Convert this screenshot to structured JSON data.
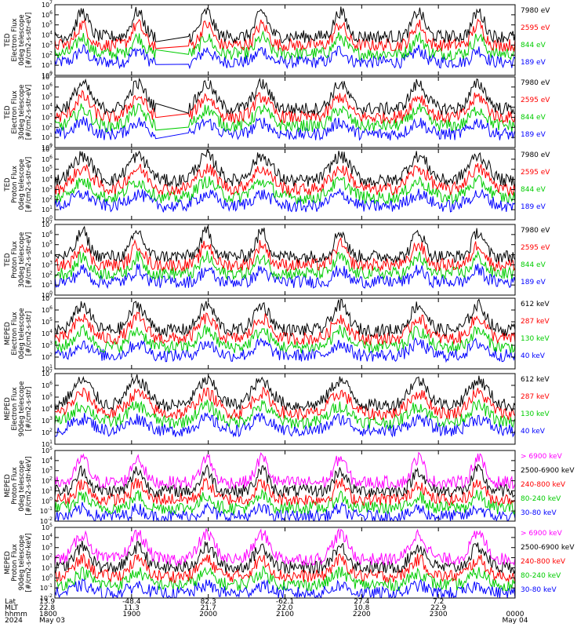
{
  "chart_data": {
    "type": "line",
    "x_range": [
      "1800",
      "0000"
    ],
    "x_ticks": [
      "1800",
      "1900",
      "2000",
      "2100",
      "2200",
      "2300",
      "0000"
    ],
    "y_scale": "log",
    "panels": [
      {
        "ylabel": [
          "TED",
          "Electron Flux",
          "0deg telescope",
          "[#/cm2-s-str-eV]"
        ],
        "ylim_exp": [
          0,
          7
        ],
        "legend": [
          {
            "name": "7980 eV",
            "color": "#000000"
          },
          {
            "name": "2595 eV",
            "color": "#ff0000"
          },
          {
            "name": "844 eV",
            "color": "#00cc00"
          },
          {
            "name": "189 eV",
            "color": "#0000ff"
          }
        ]
      },
      {
        "ylabel": [
          "TED",
          "Electron Flux",
          "30deg telescope",
          "[#/cm2-s-str-eV]"
        ],
        "ylim_exp": [
          0,
          7
        ],
        "legend": [
          {
            "name": "7980 eV",
            "color": "#000000"
          },
          {
            "name": "2595 eV",
            "color": "#ff0000"
          },
          {
            "name": "844 eV",
            "color": "#00cc00"
          },
          {
            "name": "189 eV",
            "color": "#0000ff"
          }
        ]
      },
      {
        "ylabel": [
          "TED",
          "Proton Flux",
          "0deg telescope",
          "[#/cm2-s-str-eV]"
        ],
        "ylim_exp": [
          0,
          7
        ],
        "legend": [
          {
            "name": "7980 eV",
            "color": "#000000"
          },
          {
            "name": "2595 eV",
            "color": "#ff0000"
          },
          {
            "name": "844 eV",
            "color": "#00cc00"
          },
          {
            "name": "189 eV",
            "color": "#0000ff"
          }
        ]
      },
      {
        "ylabel": [
          "TED",
          "Proton Flux",
          "30deg telescope",
          "[#/cm2-s-str-eV]"
        ],
        "ylim_exp": [
          0,
          7
        ],
        "legend": [
          {
            "name": "7980 eV",
            "color": "#000000"
          },
          {
            "name": "2595 eV",
            "color": "#ff0000"
          },
          {
            "name": "844 eV",
            "color": "#00cc00"
          },
          {
            "name": "189 eV",
            "color": "#0000ff"
          }
        ]
      },
      {
        "ylabel": [
          "MEPED",
          "Electron Flux",
          "0deg telescope",
          "[#/cm2-s-str]"
        ],
        "ylim_exp": [
          1,
          7
        ],
        "legend": [
          {
            "name": "612 keV",
            "color": "#000000"
          },
          {
            "name": "287 keV",
            "color": "#ff0000"
          },
          {
            "name": "130 keV",
            "color": "#00cc00"
          },
          {
            "name": "40 keV",
            "color": "#0000ff"
          }
        ]
      },
      {
        "ylabel": [
          "MEPED",
          "Electron Flux",
          "90deg telescope",
          "[#/cm2-s-str]"
        ],
        "ylim_exp": [
          1,
          7
        ],
        "legend": [
          {
            "name": "612 keV",
            "color": "#000000"
          },
          {
            "name": "287 keV",
            "color": "#ff0000"
          },
          {
            "name": "130 keV",
            "color": "#00cc00"
          },
          {
            "name": "40 keV",
            "color": "#0000ff"
          }
        ]
      },
      {
        "ylabel": [
          "MEPED",
          "Proton Flux",
          "0deg telescope",
          "[#/cm2-s-str-keV]"
        ],
        "ylim_exp": [
          -2,
          5
        ],
        "legend": [
          {
            "name": "> 6900 keV",
            "color": "#ff00ff"
          },
          {
            "name": "2500-6900 keV",
            "color": "#000000"
          },
          {
            "name": "240-800 keV",
            "color": "#ff0000"
          },
          {
            "name": "80-240 keV",
            "color": "#00cc00"
          },
          {
            "name": "30-80 keV",
            "color": "#0000ff"
          }
        ]
      },
      {
        "ylabel": [
          "MEPED",
          "Proton Flux",
          "90deg telescope",
          "[#/cm2-s-str-keV]"
        ],
        "ylim_exp": [
          -2,
          5
        ],
        "legend": [
          {
            "name": "> 6900 keV",
            "color": "#ff00ff"
          },
          {
            "name": "2500-6900 keV",
            "color": "#000000"
          },
          {
            "name": "240-800 keV",
            "color": "#ff0000"
          },
          {
            "name": "80-240 keV",
            "color": "#00cc00"
          },
          {
            "name": "30-80 keV",
            "color": "#0000ff"
          }
        ]
      }
    ],
    "x_axis_table": {
      "row_labels": [
        "Lat",
        "MLT",
        "hhmm",
        "2024"
      ],
      "columns": [
        {
          "lat": "13.9",
          "mlt": "22.8",
          "hhmm": "1800",
          "date": "May 03"
        },
        {
          "lat": "-48.4",
          "mlt": "11.3",
          "hhmm": "1900",
          "date": ""
        },
        {
          "lat": "82.3",
          "mlt": "21.7",
          "hhmm": "2000",
          "date": ""
        },
        {
          "lat": "-62.1",
          "mlt": "22.0",
          "hhmm": "2100",
          "date": ""
        },
        {
          "lat": "27.4",
          "mlt": "10.8",
          "hhmm": "2200",
          "date": ""
        },
        {
          "lat": "7.2",
          "mlt": "22.9",
          "hhmm": "2300",
          "date": ""
        },
        {
          "lat": "",
          "mlt": "",
          "hhmm": "0000",
          "date": "May 04"
        }
      ]
    }
  }
}
